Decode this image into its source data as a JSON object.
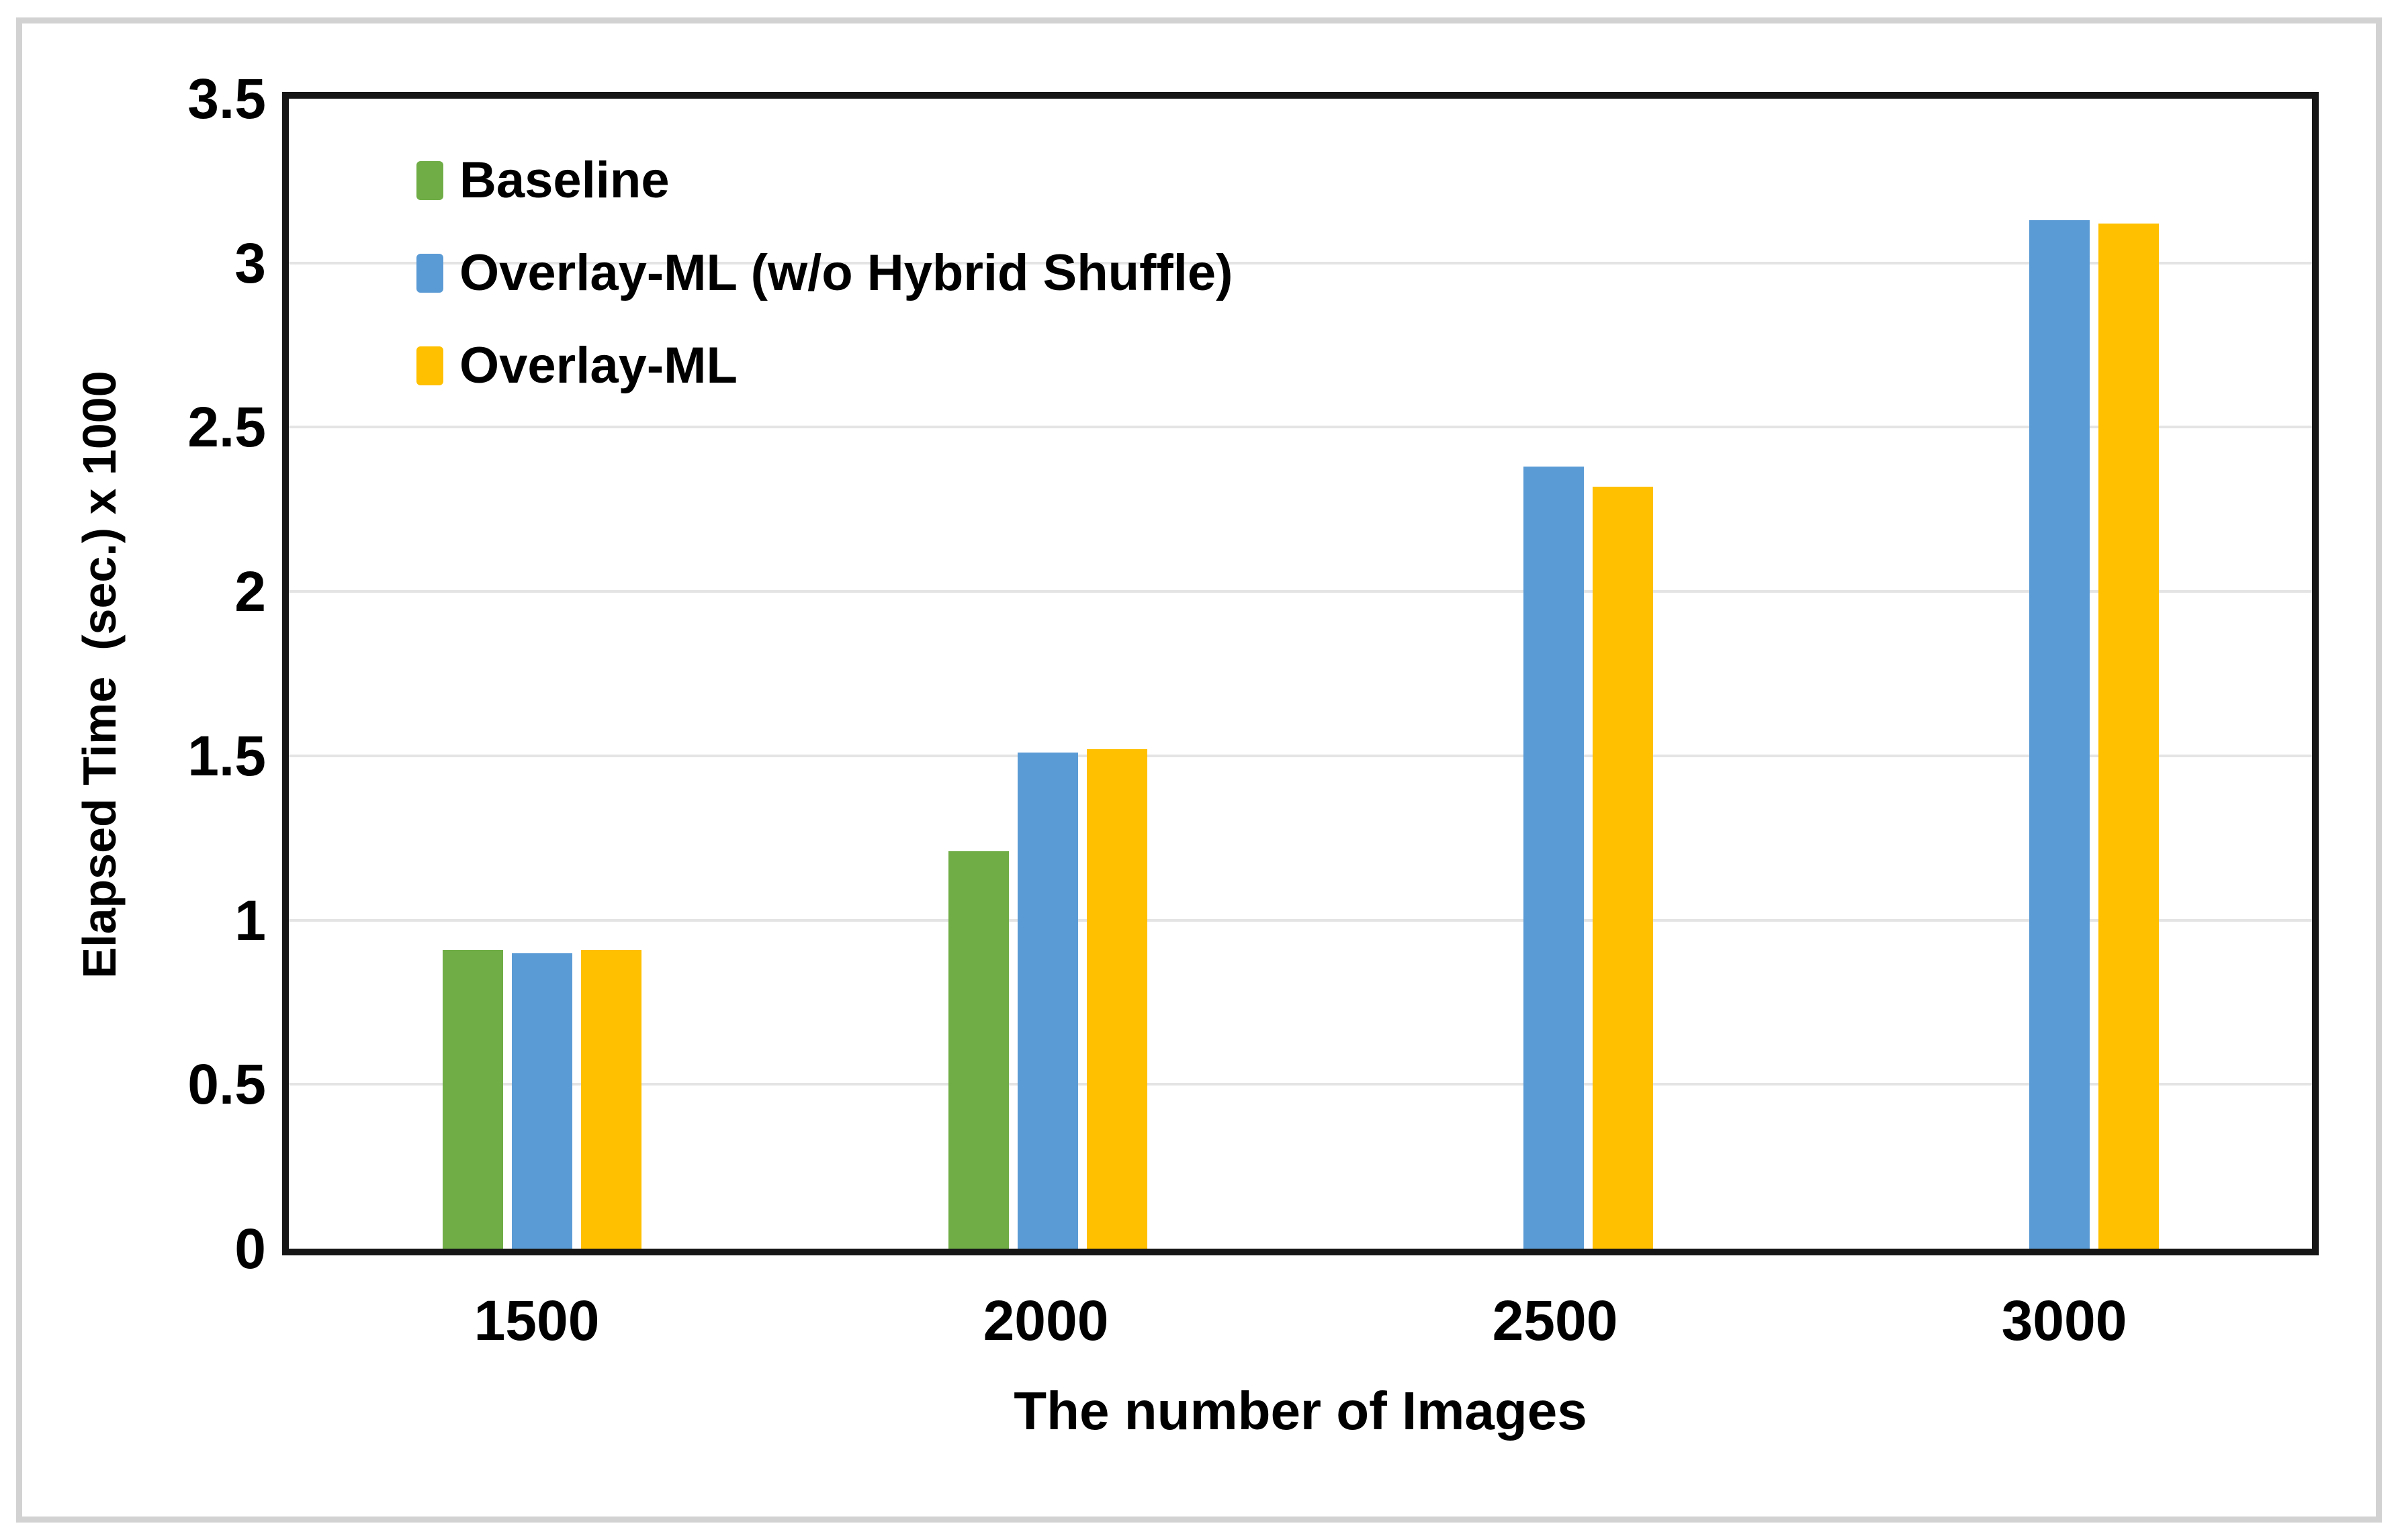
{
  "chart_data": {
    "type": "bar",
    "title": "",
    "categories": [
      "1500",
      "2000",
      "2500",
      "3000"
    ],
    "series": [
      {
        "name": "Baseline",
        "color": "#70AD47",
        "values": [
          0.91,
          1.21,
          null,
          null
        ]
      },
      {
        "name": "Overlay-ML (w/o Hybrid Shuffle)",
        "color": "#5B9BD5",
        "values": [
          0.9,
          1.51,
          2.38,
          3.13
        ]
      },
      {
        "name": "Overlay-ML",
        "color": "#FFC000",
        "values": [
          0.91,
          1.52,
          2.32,
          3.12
        ]
      }
    ],
    "xlabel": "The number of Images",
    "ylabel": "Elapsed Time  (sec.) x 1000",
    "ylim": [
      0,
      3.5
    ],
    "ytick_values": [
      3.5,
      3,
      2.5,
      2,
      1.5,
      1,
      0.5,
      0
    ],
    "ytick_labels": [
      "3.5",
      "3",
      "2.5",
      "2",
      "1.5",
      "1",
      "0.5",
      "0"
    ],
    "grid": true,
    "legend_position": "top-left",
    "colors": {
      "gridline": "#e4e4e4",
      "axis": "#161616",
      "frame": "#d2d2d2",
      "background": "#ffffff"
    }
  }
}
